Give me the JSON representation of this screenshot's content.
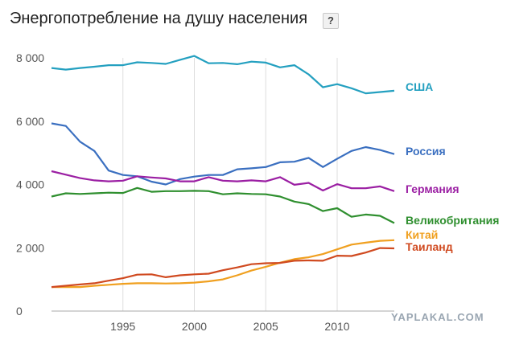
{
  "title": "Энергопотребление на душу населения",
  "help_label": "?",
  "watermark": "YAPLAKAL.COM",
  "chart_data": {
    "type": "line",
    "title": "Энергопотребление на душу населения",
    "xlabel": "",
    "ylabel": "",
    "xlim": [
      1990,
      2014
    ],
    "ylim": [
      0,
      8000
    ],
    "x_ticks": [
      1995,
      2000,
      2005,
      2010
    ],
    "y_ticks": [
      {
        "value": 0,
        "label": "0"
      },
      {
        "value": 2000,
        "label": "2 000"
      },
      {
        "value": 4000,
        "label": "4 000"
      },
      {
        "value": 6000,
        "label": "6 000"
      },
      {
        "value": 8000,
        "label": "8 000"
      }
    ],
    "grid": "vertical",
    "x": [
      1990,
      1991,
      1992,
      1993,
      1994,
      1995,
      1996,
      1997,
      1998,
      1999,
      2000,
      2001,
      2002,
      2003,
      2004,
      2005,
      2006,
      2007,
      2008,
      2009,
      2010,
      2011,
      2012,
      2013,
      2014
    ],
    "series": [
      {
        "name": "США",
        "color": "#24a0c0",
        "values": [
          7680,
          7630,
          7680,
          7720,
          7770,
          7770,
          7860,
          7840,
          7810,
          7940,
          8060,
          7830,
          7840,
          7800,
          7880,
          7850,
          7700,
          7770,
          7480,
          7070,
          7170,
          7040,
          6880,
          6920,
          6960
        ]
      },
      {
        "name": "Россия",
        "color": "#3a6fc0",
        "values": [
          5930,
          5850,
          5350,
          5060,
          4440,
          4300,
          4260,
          4090,
          4000,
          4170,
          4250,
          4300,
          4300,
          4480,
          4510,
          4550,
          4700,
          4720,
          4840,
          4550,
          4810,
          5060,
          5180,
          5090,
          4960
        ]
      },
      {
        "name": "Германия",
        "color": "#9b1fa3",
        "values": [
          4420,
          4310,
          4200,
          4130,
          4100,
          4120,
          4260,
          4220,
          4190,
          4100,
          4100,
          4230,
          4120,
          4100,
          4130,
          4100,
          4230,
          3990,
          4050,
          3810,
          4010,
          3880,
          3880,
          3940,
          3790
        ]
      },
      {
        "name": "Великобритания",
        "color": "#2f8f2f",
        "values": [
          3620,
          3720,
          3700,
          3720,
          3740,
          3730,
          3890,
          3770,
          3790,
          3790,
          3800,
          3790,
          3690,
          3720,
          3700,
          3690,
          3620,
          3460,
          3380,
          3160,
          3250,
          2980,
          3050,
          3010,
          2780
        ]
      },
      {
        "name": "Китай",
        "color": "#f0a020",
        "values": [
          760,
          760,
          760,
          800,
          830,
          860,
          880,
          880,
          870,
          880,
          900,
          940,
          1000,
          1130,
          1280,
          1400,
          1530,
          1640,
          1700,
          1800,
          1950,
          2100,
          2160,
          2220,
          2240
        ]
      },
      {
        "name": "Таиланд",
        "color": "#d04a20",
        "values": [
          760,
          800,
          840,
          880,
          960,
          1040,
          1150,
          1160,
          1070,
          1130,
          1160,
          1180,
          1290,
          1380,
          1480,
          1510,
          1520,
          1590,
          1600,
          1590,
          1750,
          1740,
          1850,
          1990,
          1980
        ]
      }
    ]
  }
}
